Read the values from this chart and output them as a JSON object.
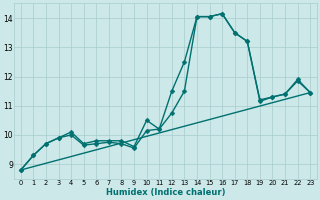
{
  "xlabel": "Humidex (Indice chaleur)",
  "background_color": "#cce8e8",
  "grid_color": "#a8cccc",
  "line_color": "#007070",
  "xlim": [
    -0.5,
    23.5
  ],
  "ylim": [
    8.5,
    14.5
  ],
  "ytick_values": [
    9,
    10,
    11,
    12,
    13,
    14
  ],
  "series": [
    {
      "x": [
        0,
        1,
        2,
        3,
        4,
        5,
        6,
        7,
        8,
        9,
        10,
        11,
        12,
        13,
        14,
        15,
        16,
        17,
        18,
        19,
        20,
        21,
        22,
        23
      ],
      "y": [
        8.8,
        9.3,
        9.7,
        9.9,
        10.1,
        9.7,
        9.8,
        9.8,
        9.8,
        9.6,
        10.5,
        10.2,
        11.5,
        12.5,
        14.05,
        14.05,
        14.15,
        13.5,
        13.2,
        11.2,
        11.3,
        11.4,
        11.9,
        11.45
      ],
      "has_marker": true,
      "markersize": 2.5,
      "linewidth": 1.0
    },
    {
      "x": [
        0,
        1,
        2,
        3,
        4,
        5,
        6,
        7,
        8,
        9,
        10,
        11,
        12,
        13,
        14,
        15,
        16,
        17,
        18,
        19,
        20,
        21,
        22,
        23
      ],
      "y": [
        8.8,
        9.3,
        9.7,
        9.9,
        10.0,
        9.65,
        9.7,
        9.75,
        9.7,
        9.55,
        10.15,
        10.2,
        10.75,
        11.5,
        14.05,
        14.05,
        14.15,
        13.5,
        13.2,
        11.15,
        11.3,
        11.4,
        11.85,
        11.45
      ],
      "has_marker": true,
      "markersize": 2.5,
      "linewidth": 1.0
    },
    {
      "x": [
        0,
        23
      ],
      "y": [
        8.8,
        11.45
      ],
      "has_marker": false,
      "markersize": 0,
      "linewidth": 1.0
    }
  ]
}
